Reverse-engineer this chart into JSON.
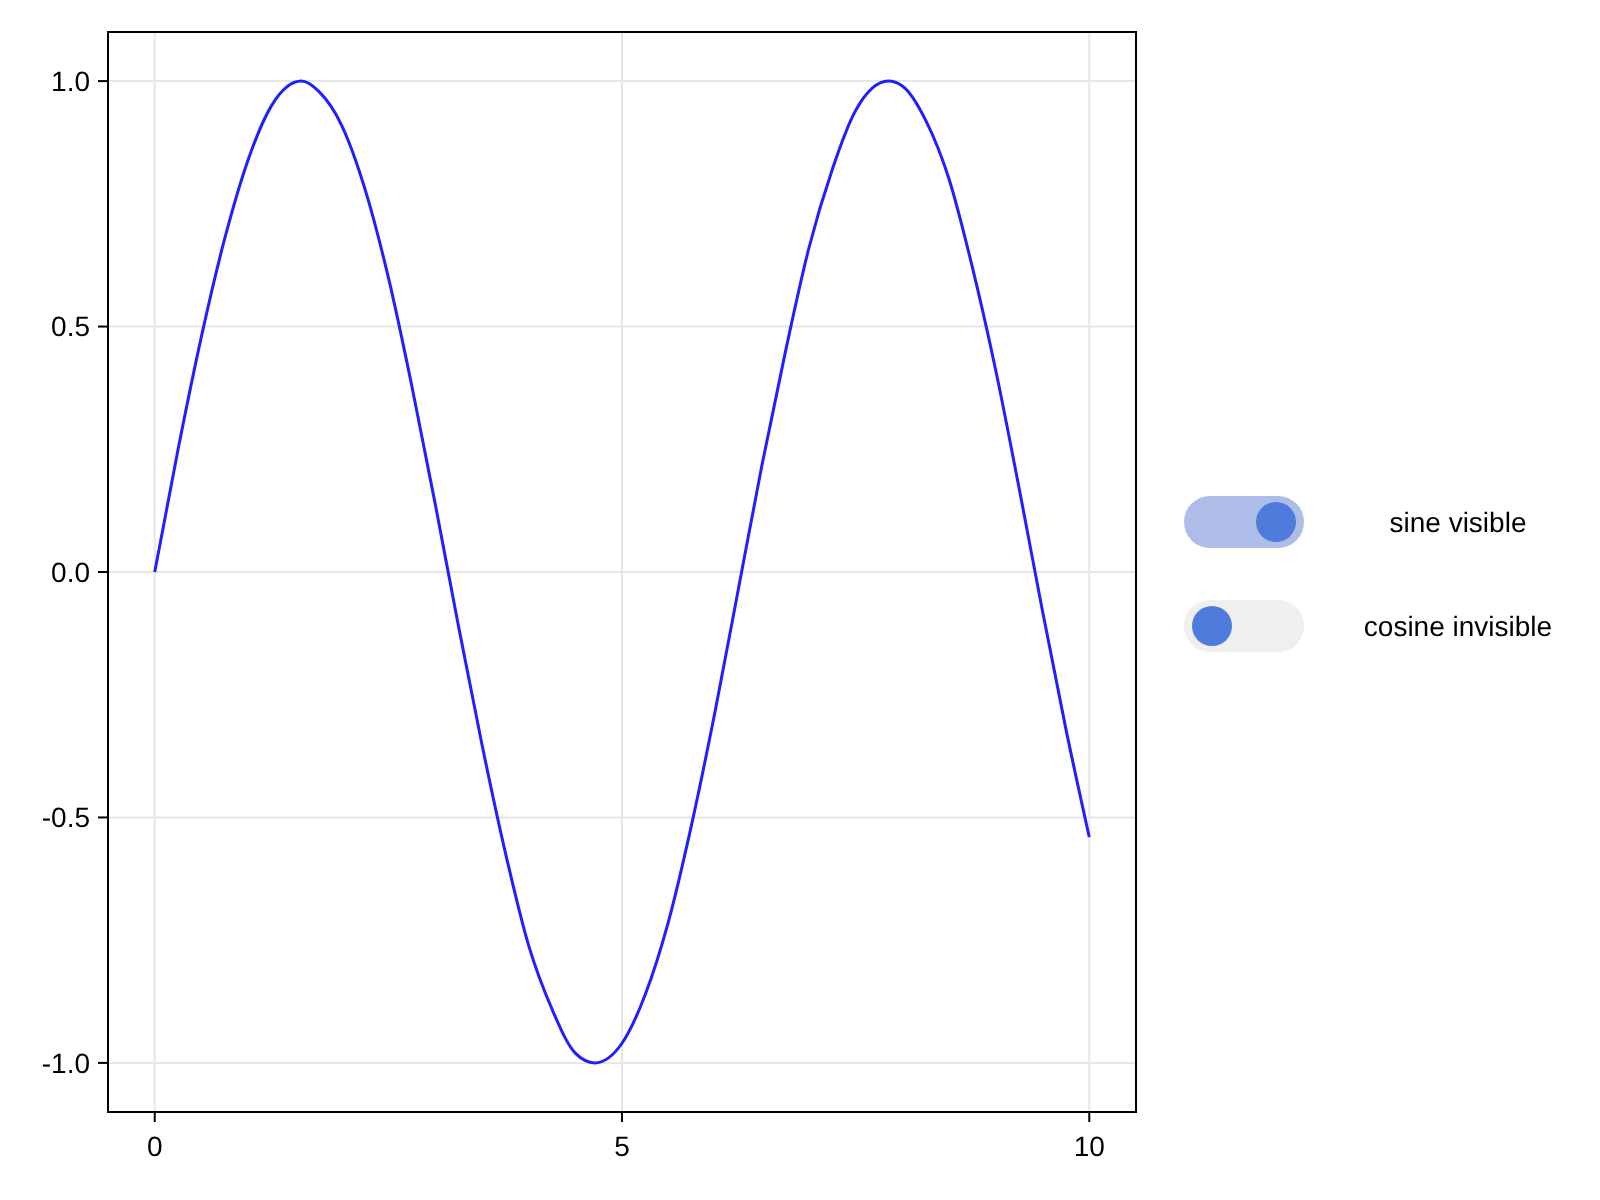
{
  "chart_data": {
    "type": "line",
    "x": [
      0,
      0.25,
      0.5,
      0.75,
      1,
      1.25,
      1.57,
      1.75,
      2,
      2.25,
      2.5,
      2.75,
      3,
      3.25,
      3.5,
      3.75,
      4,
      4.25,
      4.5,
      4.71,
      5,
      5.25,
      5.5,
      5.75,
      6,
      6.25,
      6.5,
      6.75,
      7,
      7.25,
      7.5,
      7.85,
      8,
      8.25,
      8.5,
      8.75,
      9,
      9.25,
      9.5,
      9.75,
      10
    ],
    "series": [
      {
        "color": "#1f1fff",
        "values": [
          0,
          0.25,
          0.48,
          0.68,
          0.84,
          0.95,
          1.0,
          0.98,
          0.91,
          0.78,
          0.6,
          0.38,
          0.14,
          -0.11,
          -0.35,
          -0.57,
          -0.76,
          -0.89,
          -0.98,
          -1.0,
          -0.96,
          -0.86,
          -0.71,
          -0.51,
          -0.28,
          -0.03,
          0.22,
          0.45,
          0.66,
          0.82,
          0.94,
          1.0,
          0.99,
          0.92,
          0.8,
          0.62,
          0.41,
          0.17,
          -0.08,
          -0.32,
          -0.54
        ]
      }
    ],
    "xlim": [
      -0.5,
      10.5
    ],
    "ylim": [
      -1.1,
      1.1
    ],
    "xticks": [
      0,
      5,
      10
    ],
    "yticks": [
      {
        "value": -1,
        "label": "-1.0"
      },
      {
        "value": -0.5,
        "label": "-0.5"
      },
      {
        "value": 0,
        "label": "0.0"
      },
      {
        "value": 0.5,
        "label": "0.5"
      },
      {
        "value": 1,
        "label": "1.0"
      }
    ],
    "grid": true,
    "annotations": [
      "sine visible",
      "cosine invisible"
    ]
  }
}
